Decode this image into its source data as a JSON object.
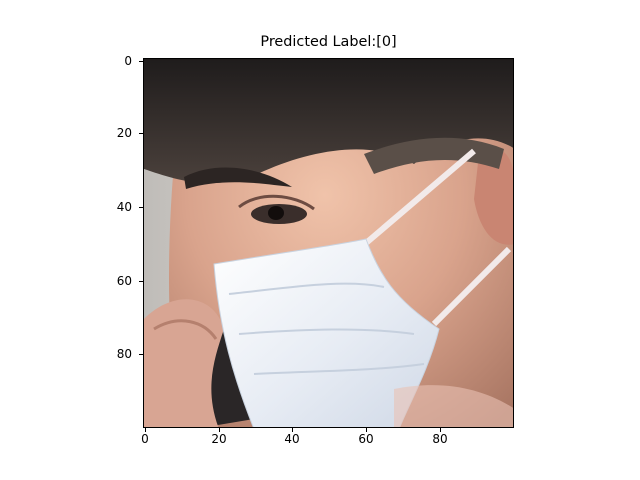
{
  "figure": {
    "title": "Predicted Label:[0]",
    "image_subject": "close-up of a person wearing a white surgical face mask while holding a phone to the ear",
    "colors": {
      "axis": "#000000",
      "background": "#ffffff",
      "mask": "#e6ebf3",
      "hair": "#2f2b2a",
      "skin": "#d9a38c"
    }
  },
  "axes": {
    "y_ticks": [
      "0",
      "20",
      "40",
      "60",
      "80"
    ],
    "x_ticks": [
      "0",
      "20",
      "40",
      "60",
      "80"
    ],
    "pixel_range": [
      0,
      99
    ]
  }
}
